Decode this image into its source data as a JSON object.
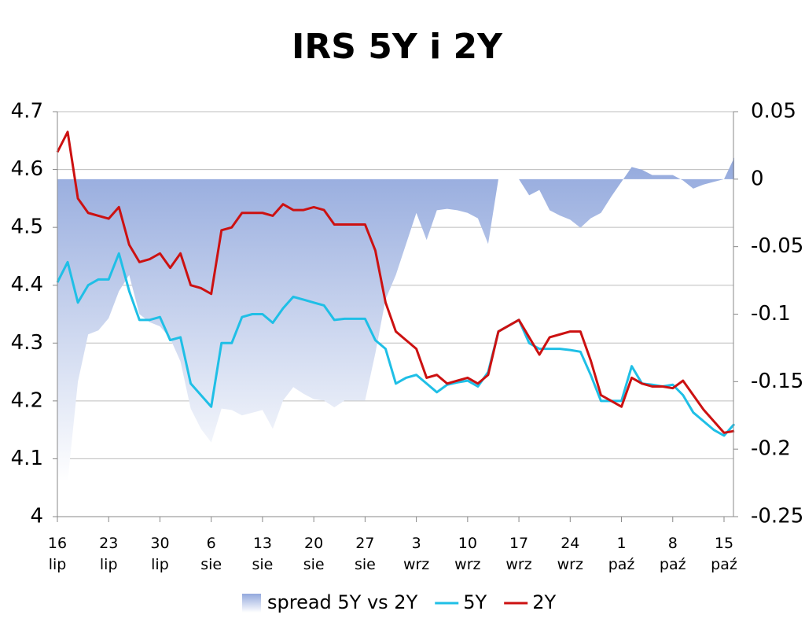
{
  "chart_data": {
    "type": "line",
    "title": "IRS 5Y i 2Y",
    "categories": [
      "16\nlip",
      null,
      null,
      null,
      null,
      "23\nlip",
      null,
      null,
      null,
      null,
      "30\nlip",
      null,
      null,
      null,
      null,
      "6\nsie",
      null,
      null,
      null,
      null,
      "13\nsie",
      null,
      null,
      null,
      null,
      "20\nsie",
      null,
      null,
      null,
      null,
      "27\nsie",
      null,
      null,
      null,
      null,
      "3\nwrz",
      null,
      null,
      null,
      null,
      "10\nwrz",
      null,
      null,
      null,
      null,
      "17\nwrz",
      null,
      null,
      null,
      null,
      "24\nwrz",
      null,
      null,
      null,
      null,
      "1\npaź",
      null,
      null,
      null,
      null,
      "8\npaź",
      null,
      null,
      null,
      null,
      "15\npaź",
      null
    ],
    "ylim": [
      4,
      4.7
    ],
    "yticks": [
      4,
      4.1,
      4.2,
      4.3,
      4.4,
      4.5,
      4.6,
      4.7
    ],
    "y2lim": [
      -0.25,
      0.05
    ],
    "y2ticks": [
      -0.25,
      -0.2,
      -0.15,
      -0.1,
      -0.05,
      0,
      0.05
    ],
    "grid": true,
    "legend": "bottom",
    "series": [
      {
        "name": "spread 5Y vs 2Y",
        "type": "area",
        "axis": "y2",
        "color": "#93a9dd",
        "values": [
          -0.224,
          -0.224,
          -0.15,
          -0.115,
          -0.112,
          -0.103,
          -0.083,
          -0.071,
          -0.1,
          -0.106,
          -0.109,
          -0.118,
          -0.135,
          -0.17,
          -0.185,
          -0.195,
          -0.17,
          -0.171,
          -0.175,
          -0.173,
          -0.171,
          -0.185,
          -0.164,
          -0.154,
          -0.159,
          -0.163,
          -0.164,
          -0.169,
          -0.164,
          -0.164,
          -0.164,
          -0.129,
          -0.089,
          -0.071,
          -0.048,
          -0.025,
          -0.045,
          -0.023,
          -0.022,
          -0.023,
          -0.025,
          -0.029,
          -0.048,
          0,
          0,
          0,
          -0.012,
          -0.008,
          -0.023,
          -0.027,
          -0.03,
          -0.036,
          -0.029,
          -0.025,
          -0.013,
          -0.002,
          0.009,
          0.007,
          0.003,
          0.003,
          0.003,
          -0.001,
          -0.007,
          -0.004,
          -0.002,
          0,
          0.016
        ]
      },
      {
        "name": "5Y",
        "type": "line",
        "color": "#1fbfe6",
        "values": [
          4.405,
          4.44,
          4.37,
          4.4,
          4.41,
          4.41,
          4.455,
          4.39,
          4.34,
          4.34,
          4.345,
          4.305,
          4.31,
          4.23,
          4.21,
          4.19,
          4.3,
          4.3,
          4.345,
          4.35,
          4.35,
          4.335,
          4.36,
          4.38,
          4.375,
          4.37,
          4.365,
          4.34,
          4.342,
          4.342,
          4.342,
          4.305,
          4.29,
          4.23,
          4.24,
          4.245,
          4.23,
          4.215,
          4.228,
          4.232,
          4.235,
          4.225,
          4.25,
          4.32,
          4.33,
          4.34,
          4.3,
          4.29,
          4.29,
          4.29,
          4.288,
          4.285,
          4.245,
          4.2,
          4.2,
          4.2,
          4.26,
          4.23,
          4.228,
          4.225,
          4.228,
          4.21,
          4.18,
          4.165,
          4.15,
          4.14,
          4.16
        ]
      },
      {
        "name": "2Y",
        "type": "line",
        "color": "#cc1111",
        "values": [
          4.63,
          4.665,
          4.55,
          4.525,
          4.52,
          4.515,
          4.535,
          4.47,
          4.44,
          4.445,
          4.455,
          4.43,
          4.455,
          4.4,
          4.395,
          4.385,
          4.495,
          4.5,
          4.525,
          4.525,
          4.525,
          4.52,
          4.54,
          4.53,
          4.53,
          4.535,
          4.53,
          4.505,
          4.505,
          4.505,
          4.505,
          4.46,
          4.37,
          4.32,
          4.305,
          4.29,
          4.24,
          4.245,
          4.23,
          4.235,
          4.24,
          4.23,
          4.245,
          4.32,
          4.33,
          4.34,
          4.31,
          4.28,
          4.31,
          4.315,
          4.32,
          4.32,
          4.27,
          4.21,
          4.2,
          4.19,
          4.24,
          4.23,
          4.225,
          4.225,
          4.222,
          4.235,
          4.21,
          4.185,
          4.165,
          4.145,
          4.148
        ]
      }
    ]
  }
}
